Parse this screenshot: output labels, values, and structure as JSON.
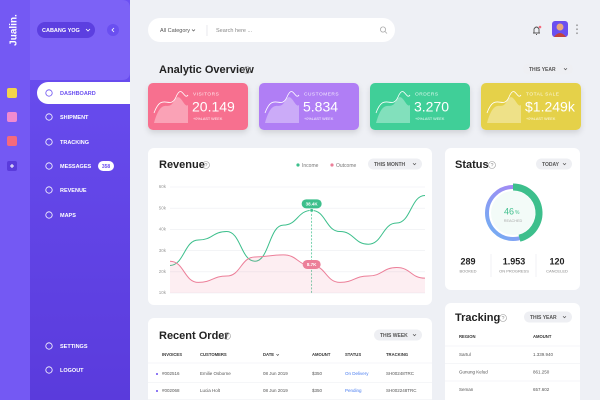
{
  "sidebar": {
    "logo": "Jualin.",
    "branch": "CABANG YOG",
    "nav": [
      "DASHBOARD",
      "SHIPMENT",
      "TRACKING",
      "MESSAGES",
      "REVENUE",
      "MAPS"
    ],
    "messages_badge": "358",
    "bottom_nav": [
      "SETTINGS",
      "LOGOUT"
    ]
  },
  "search": {
    "category": "All Category",
    "placeholder": "Search here ..."
  },
  "overview": {
    "title": "Analytic Overview",
    "period": "THIS YEAR",
    "cards": [
      {
        "label": "VISITORS",
        "value": "20.149",
        "note": "+0%LAST WEEK",
        "color": "#f7708f"
      },
      {
        "label": "CUSTOMERS",
        "value": "5.834",
        "note": "+0%LAST WEEK",
        "color": "#b07ef5"
      },
      {
        "label": "ORDERS",
        "value": "3.270",
        "note": "+0%LAST WEEK",
        "color": "#3fcf98"
      },
      {
        "label": "TOTAL SALE",
        "value": "$1.249k",
        "note": "+0%LAST WEEK",
        "color": "#e5d148"
      }
    ]
  },
  "chart_data": {
    "type": "line",
    "title": "Revenue",
    "period": "THIS MONTH",
    "categories": [
      null,
      null,
      null,
      null,
      null,
      null,
      null,
      null,
      null,
      null
    ],
    "series": [
      {
        "name": "Income",
        "color": "#3dbf8c",
        "values": [
          23,
          35,
          39,
          25,
          42,
          49,
          39,
          33,
          43,
          56
        ]
      },
      {
        "name": "Outcome",
        "color": "#ec7f99",
        "values": [
          25,
          15,
          18,
          27,
          28,
          23,
          15,
          18,
          22,
          17
        ]
      }
    ],
    "annotations": [
      "38.4K",
      "8.7K"
    ],
    "ylim": [
      10,
      60
    ],
    "yticks": [
      {
        "value": 60,
        "label": "60k"
      },
      {
        "value": 50,
        "label": "50k"
      },
      {
        "value": 40,
        "label": "40k"
      },
      {
        "value": 30,
        "label": "30k"
      },
      {
        "value": 20,
        "label": "20k"
      },
      {
        "value": 10,
        "label": "10k"
      }
    ],
    "grid": true
  },
  "status": {
    "title": "Status",
    "period": "TODAY",
    "percent": 46,
    "unit": "%",
    "caption": "REACHED",
    "stats": [
      {
        "value": "289",
        "label": "BOOKED"
      },
      {
        "value": "1.953",
        "label": "ON PROGRESS"
      },
      {
        "value": "120",
        "label": "CANCELED"
      }
    ]
  },
  "orders": {
    "title": "Recent Order",
    "period": "THIS WEEK",
    "headers": [
      "INVOICES",
      "CUSTOMERS",
      "DATE",
      "AMOUNT",
      "STATUS",
      "TRACKING"
    ],
    "rows": [
      [
        "#002516",
        "Emilie Osborne",
        "08 Jun 2019",
        "$350",
        "On Delivery",
        "SH00248TRC"
      ],
      [
        "#002068",
        "Lucia Holt",
        "08 Jun 2019",
        "$350",
        "Pending",
        "SH002248TRC"
      ]
    ]
  },
  "tracking": {
    "title": "Tracking",
    "period": "THIS YEAR",
    "headers": [
      "REGION",
      "AMOUNT"
    ],
    "rows": [
      [
        "Sartul",
        "1.339.940"
      ],
      [
        "Gunung Kelud",
        "861.250"
      ],
      [
        "Seman",
        "657.602"
      ]
    ]
  }
}
